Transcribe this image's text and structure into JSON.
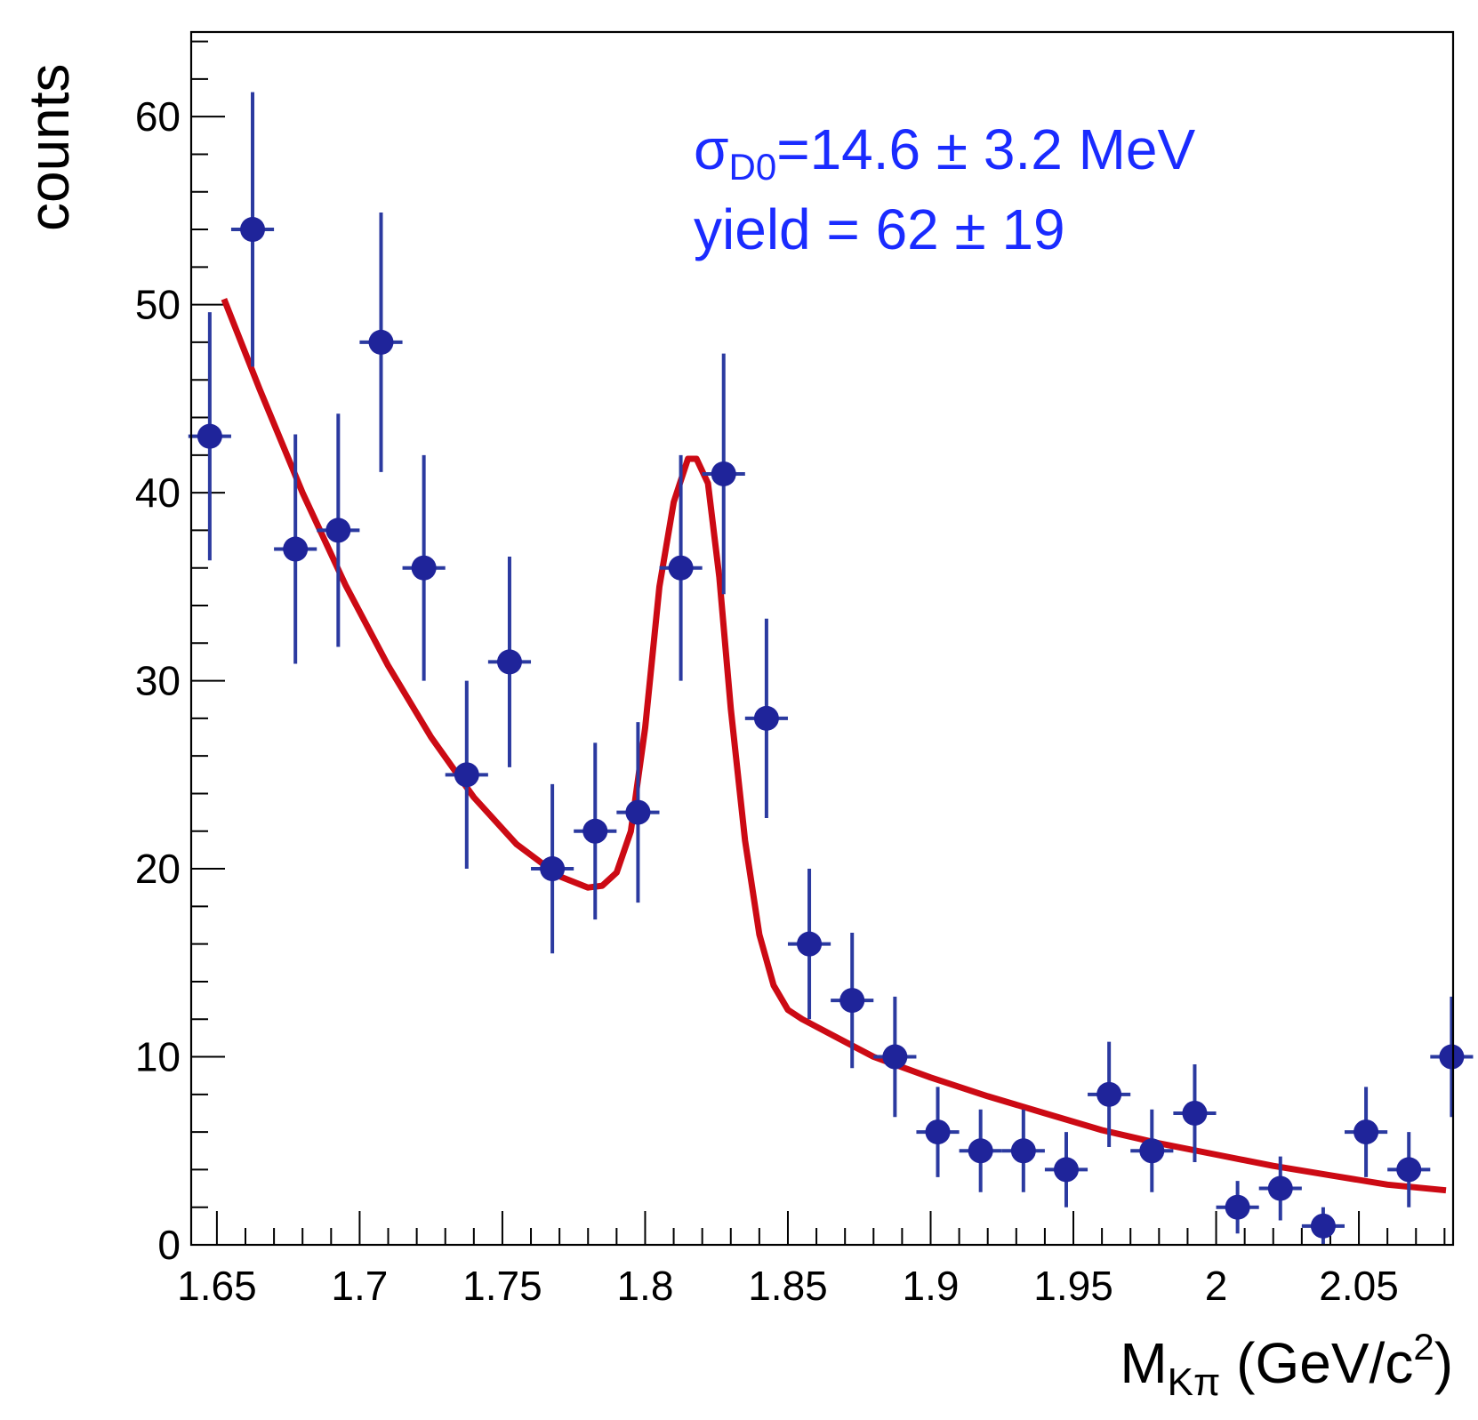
{
  "colors": {
    "points": "#1f249a",
    "errorbars": "#2b3aa0",
    "fit": "#cc0a14",
    "annotation": "#1a2bff",
    "axes": "#000000"
  },
  "chart_data": {
    "type": "scatter",
    "title": "",
    "xlabel_main": "M",
    "xlabel_sub": "Kπ",
    "xlabel_units": " (GeV/c",
    "xlabel_sup": "2",
    "xlabel_close": ")",
    "ylabel": "counts",
    "xlim": [
      1.641,
      2.083
    ],
    "ylim": [
      0,
      64.5
    ],
    "xticks": [
      1.65,
      1.7,
      1.75,
      1.8,
      1.85,
      1.9,
      1.95,
      2.0,
      2.05
    ],
    "xtick_labels": [
      "1.65",
      "1.7",
      "1.75",
      "1.8",
      "1.85",
      "1.9",
      "1.95",
      "2",
      "2.05"
    ],
    "yticks": [
      0,
      10,
      20,
      30,
      40,
      50,
      60
    ],
    "ytick_labels": [
      "0",
      "10",
      "20",
      "30",
      "40",
      "50",
      "60"
    ],
    "bin_half_width": 0.0075,
    "series": [
      {
        "name": "data",
        "type": "points-with-errors",
        "x": [
          1.6475,
          1.6625,
          1.6775,
          1.6925,
          1.7075,
          1.7225,
          1.7375,
          1.7525,
          1.7675,
          1.7825,
          1.7975,
          1.8125,
          1.8275,
          1.8425,
          1.8575,
          1.8725,
          1.8875,
          1.9025,
          1.9175,
          1.9325,
          1.9475,
          1.9625,
          1.9775,
          1.9925,
          2.0075,
          2.0225,
          2.0375,
          2.0525,
          2.0675,
          2.0825
        ],
        "y": [
          43,
          54,
          37,
          38,
          48,
          36,
          25,
          31,
          20,
          22,
          23,
          36,
          41,
          28,
          16,
          13,
          10,
          6,
          5,
          5,
          4,
          8,
          5,
          7,
          2,
          3,
          1,
          6,
          4,
          10
        ],
        "yerr": [
          6.6,
          7.3,
          6.1,
          6.2,
          6.9,
          6.0,
          5.0,
          5.6,
          4.5,
          4.7,
          4.8,
          6.0,
          6.4,
          5.3,
          4.0,
          3.6,
          3.2,
          2.4,
          2.2,
          2.2,
          2.0,
          2.8,
          2.2,
          2.6,
          1.4,
          1.7,
          1.0,
          2.4,
          2.0,
          3.2
        ]
      },
      {
        "name": "fit",
        "type": "line",
        "x": [
          1.6525,
          1.665,
          1.68,
          1.695,
          1.71,
          1.725,
          1.74,
          1.755,
          1.77,
          1.78,
          1.785,
          1.79,
          1.795,
          1.8,
          1.805,
          1.81,
          1.815,
          1.818,
          1.822,
          1.826,
          1.83,
          1.835,
          1.84,
          1.845,
          1.85,
          1.855,
          1.86,
          1.87,
          1.88,
          1.9,
          1.92,
          1.94,
          1.96,
          1.98,
          2.0,
          2.02,
          2.04,
          2.06,
          2.0805
        ],
        "y": [
          50.3,
          45.5,
          40.0,
          35.1,
          30.8,
          27.0,
          23.8,
          21.3,
          19.6,
          19.0,
          19.1,
          19.8,
          22.0,
          27.5,
          35.0,
          39.5,
          41.8,
          41.8,
          40.5,
          35.5,
          28.5,
          21.5,
          16.5,
          13.8,
          12.5,
          12.0,
          11.6,
          10.8,
          10.0,
          8.9,
          7.9,
          7.0,
          6.1,
          5.4,
          4.8,
          4.2,
          3.7,
          3.2,
          2.9
        ]
      }
    ],
    "annotations": {
      "sigma_symbol": "σ",
      "sigma_sub": "D0",
      "sigma_value": "=14.6 ± 3.2 MeV",
      "yield": "yield = 62 ± 19"
    }
  }
}
